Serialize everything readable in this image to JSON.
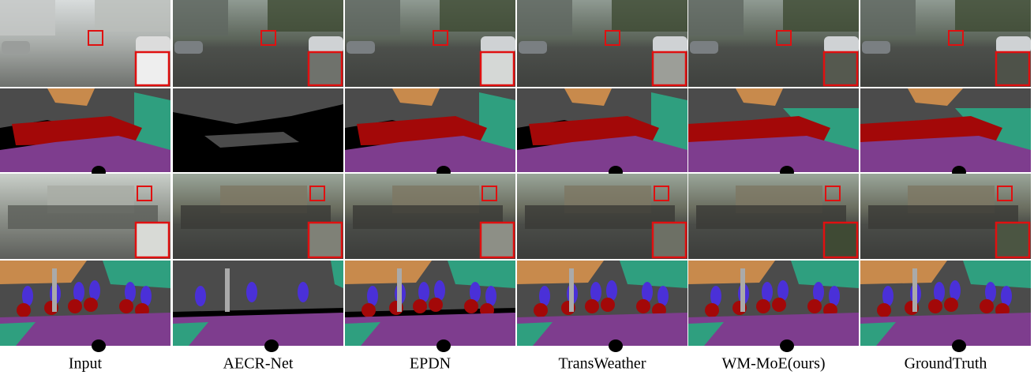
{
  "figure": {
    "captions": [
      "Input",
      "AECR-Net",
      "EPDN",
      "TransWeather",
      "WM-MoE(ours)",
      "GroundTruth"
    ]
  }
}
